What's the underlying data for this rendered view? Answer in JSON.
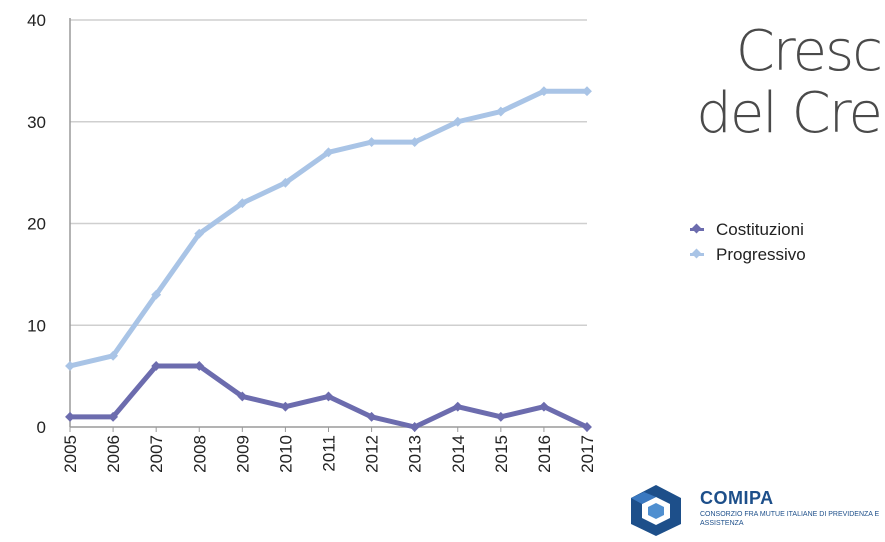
{
  "title": {
    "line1": "Cresc",
    "line2": "del Cre"
  },
  "chart_data": {
    "type": "line",
    "title": "",
    "xlabel": "",
    "ylabel": "",
    "x": [
      "2005",
      "2006",
      "2007",
      "2008",
      "2009",
      "2010",
      "2011",
      "2012",
      "2013",
      "2014",
      "2015",
      "2016",
      "2017"
    ],
    "ylim": [
      0,
      40
    ],
    "yticks": [
      "0",
      "10",
      "20",
      "30",
      "40"
    ],
    "grid": true,
    "legend_position": "right",
    "series": [
      {
        "name": "Costituzioni",
        "color": "#6c6cae",
        "values": [
          1,
          1,
          6,
          6,
          3,
          2,
          3,
          1,
          0,
          2,
          1,
          2,
          0
        ]
      },
      {
        "name": "Progressivo",
        "color": "#a9c4e6",
        "values": [
          6,
          7,
          13,
          19,
          22,
          24,
          27,
          28,
          28,
          30,
          31,
          33,
          33
        ]
      }
    ]
  },
  "logo": {
    "name": "COMIPA",
    "subtitle": "CONSORZIO FRA MUTUE ITALIANE DI PREVIDENZA E ASSISTENZA",
    "color": "#1d4f8a",
    "icon": "comipa-logo-mark"
  }
}
